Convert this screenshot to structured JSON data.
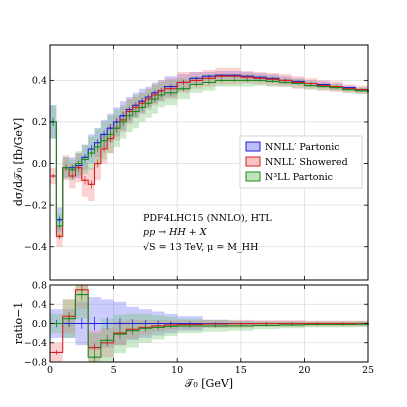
{
  "chart_data": [
    {
      "type": "line",
      "panel": "main",
      "ylabel": "dσ/d𝒯₀ [fb/GeV]",
      "xlim": [
        0,
        25
      ],
      "ylim": [
        -0.56,
        0.57
      ],
      "yticks": [
        -0.4,
        -0.2,
        0.0,
        0.2,
        0.4
      ],
      "ytick_labels": [
        "−0.4",
        "−0.2",
        "0.0",
        "0.2",
        "0.4"
      ],
      "grid": true,
      "legend_position": "center-right",
      "annotations": [
        "PDF4LHC15 (NNLO), HTL",
        "pp → HH + X",
        "√S = 13 TeV, μ = M_HH"
      ],
      "series": [
        {
          "name": "NNLL′ Partonic",
          "color": "#1f1fd6",
          "band_color": "#6b6bf5",
          "x": [
            0,
            0.5,
            1,
            1.5,
            2,
            2.5,
            3,
            3.5,
            4,
            4.5,
            5,
            5.5,
            6,
            6.5,
            7,
            7.5,
            8,
            8.5,
            9,
            10,
            11,
            12,
            13,
            14,
            15,
            16,
            17,
            18,
            19,
            20,
            21,
            22,
            23,
            24,
            25
          ],
          "values": [
            0.2,
            -0.27,
            -0.02,
            -0.02,
            -0.01,
            0.03,
            0.07,
            0.1,
            0.14,
            0.17,
            0.2,
            0.23,
            0.26,
            0.28,
            0.3,
            0.32,
            0.34,
            0.35,
            0.37,
            0.39,
            0.41,
            0.42,
            0.425,
            0.425,
            0.42,
            0.415,
            0.41,
            0.4,
            0.395,
            0.385,
            0.38,
            0.37,
            0.365,
            0.355,
            0.35
          ],
          "band_half_width": [
            0.08,
            0.06,
            0.05,
            0.05,
            0.06,
            0.06,
            0.07,
            0.07,
            0.07,
            0.07,
            0.07,
            0.07,
            0.06,
            0.06,
            0.06,
            0.05,
            0.05,
            0.05,
            0.05,
            0.04,
            0.03,
            0.02,
            0.02,
            0.02,
            0.02,
            0.02,
            0.02,
            0.02,
            0.015,
            0.015,
            0.015,
            0.015,
            0.01,
            0.01,
            0.01
          ]
        },
        {
          "name": "NNLL′ Showered",
          "color": "#d61f1f",
          "band_color": "#f57a7a",
          "x": [
            0,
            0.5,
            1,
            1.5,
            2,
            2.5,
            3,
            3.5,
            4,
            4.5,
            5,
            5.5,
            6,
            6.5,
            7,
            7.5,
            8,
            8.5,
            9,
            10,
            11,
            12,
            13,
            14,
            15,
            16,
            17,
            18,
            19,
            20,
            21,
            22,
            23,
            24,
            25
          ],
          "values": [
            -0.06,
            -0.35,
            -0.02,
            -0.06,
            -0.02,
            -0.08,
            -0.1,
            0.0,
            0.07,
            0.12,
            0.17,
            0.21,
            0.25,
            0.27,
            0.29,
            0.31,
            0.33,
            0.35,
            0.36,
            0.39,
            0.4,
            0.41,
            0.42,
            0.42,
            0.415,
            0.41,
            0.405,
            0.4,
            0.39,
            0.385,
            0.375,
            0.37,
            0.36,
            0.355,
            0.35
          ],
          "band_half_width": [
            0.04,
            0.05,
            0.06,
            0.06,
            0.07,
            0.08,
            0.08,
            0.08,
            0.07,
            0.07,
            0.06,
            0.06,
            0.06,
            0.05,
            0.05,
            0.05,
            0.05,
            0.05,
            0.05,
            0.05,
            0.04,
            0.04,
            0.04,
            0.04,
            0.03,
            0.03,
            0.03,
            0.03,
            0.03,
            0.025,
            0.025,
            0.025,
            0.02,
            0.02,
            0.02
          ]
        },
        {
          "name": "N³LL Partonic",
          "color": "#1f8a1f",
          "band_color": "#6fc46f",
          "x": [
            0,
            0.5,
            1,
            1.5,
            2,
            2.5,
            3,
            3.5,
            4,
            4.5,
            5,
            5.5,
            6,
            6.5,
            7,
            7.5,
            8,
            8.5,
            9,
            10,
            11,
            12,
            13,
            14,
            15,
            16,
            17,
            18,
            19,
            20,
            21,
            22,
            23,
            24,
            25
          ],
          "values": [
            0.2,
            -0.3,
            -0.02,
            -0.03,
            0.0,
            0.02,
            0.05,
            0.08,
            0.11,
            0.14,
            0.17,
            0.2,
            0.23,
            0.25,
            0.27,
            0.29,
            0.31,
            0.33,
            0.34,
            0.36,
            0.38,
            0.39,
            0.4,
            0.4,
            0.4,
            0.4,
            0.395,
            0.39,
            0.385,
            0.375,
            0.37,
            0.365,
            0.355,
            0.35,
            0.345
          ],
          "band_half_width": [
            0.08,
            0.06,
            0.05,
            0.05,
            0.06,
            0.07,
            0.08,
            0.09,
            0.09,
            0.09,
            0.09,
            0.08,
            0.08,
            0.08,
            0.07,
            0.07,
            0.07,
            0.06,
            0.06,
            0.05,
            0.04,
            0.04,
            0.03,
            0.03,
            0.03,
            0.025,
            0.025,
            0.02,
            0.02,
            0.02,
            0.015,
            0.015,
            0.015,
            0.015,
            0.015
          ]
        }
      ]
    },
    {
      "type": "line",
      "panel": "ratio",
      "xlabel": "𝒯₀ [GeV]",
      "ylabel": "ratio−1",
      "xlim": [
        0,
        25
      ],
      "ylim": [
        -0.8,
        0.8
      ],
      "xticks": [
        0,
        5,
        10,
        15,
        20,
        25
      ],
      "xtick_labels": [
        "0",
        "5",
        "10",
        "15",
        "20",
        "25"
      ],
      "yticks": [
        -0.8,
        -0.4,
        0.0,
        0.4,
        0.8
      ],
      "ytick_labels": [
        "−0.8",
        "−0.4",
        "0.0",
        "0.4",
        "0.8"
      ],
      "grid": true,
      "series": [
        {
          "name": "NNLL′ Partonic",
          "color": "#1f1fd6",
          "band_color": "#6b6bf5",
          "x": [
            0,
            1,
            2,
            3,
            4,
            5,
            6,
            7,
            8,
            9,
            10,
            12,
            14,
            16,
            18,
            20,
            22,
            24,
            25
          ],
          "values": [
            0,
            0,
            0,
            0,
            0,
            0,
            0,
            0,
            0,
            0,
            0,
            0,
            0,
            0,
            0,
            0,
            0,
            0,
            0
          ],
          "band_half_width": [
            0.3,
            0.3,
            0.45,
            0.55,
            0.5,
            0.45,
            0.35,
            0.3,
            0.25,
            0.2,
            0.15,
            0.08,
            0.06,
            0.05,
            0.05,
            0.04,
            0.04,
            0.04,
            0.04
          ]
        },
        {
          "name": "NNLL′ Showered",
          "color": "#d61f1f",
          "band_color": "#f57a7a",
          "x": [
            0,
            1,
            2,
            3,
            4,
            5,
            6,
            7,
            8,
            9,
            10,
            12,
            14,
            16,
            18,
            20,
            22,
            24,
            25
          ],
          "values": [
            -0.6,
            0.15,
            0.7,
            -0.5,
            -0.4,
            -0.2,
            -0.12,
            -0.08,
            -0.05,
            -0.03,
            -0.02,
            -0.01,
            -0.005,
            0.0,
            0.0,
            0.0,
            0.0,
            0.0,
            0.0
          ],
          "band_half_width": [
            0.2,
            0.35,
            0.4,
            0.35,
            0.3,
            0.25,
            0.2,
            0.15,
            0.12,
            0.1,
            0.09,
            0.08,
            0.08,
            0.07,
            0.07,
            0.06,
            0.06,
            0.06,
            0.06
          ]
        },
        {
          "name": "N³LL Partonic",
          "color": "#1f8a1f",
          "band_color": "#6fc46f",
          "x": [
            0,
            1,
            2,
            3,
            4,
            5,
            6,
            7,
            8,
            9,
            10,
            12,
            14,
            16,
            18,
            20,
            22,
            24,
            25
          ],
          "values": [
            0.0,
            0.1,
            0.6,
            -0.7,
            -0.35,
            -0.22,
            -0.15,
            -0.1,
            -0.08,
            -0.06,
            -0.05,
            -0.05,
            -0.05,
            -0.04,
            -0.03,
            -0.02,
            -0.02,
            -0.015,
            -0.015
          ],
          "band_half_width": [
            0.2,
            0.4,
            0.5,
            0.5,
            0.45,
            0.4,
            0.35,
            0.3,
            0.25,
            0.2,
            0.15,
            0.12,
            0.1,
            0.08,
            0.07,
            0.06,
            0.06,
            0.06,
            0.06
          ]
        }
      ]
    }
  ]
}
